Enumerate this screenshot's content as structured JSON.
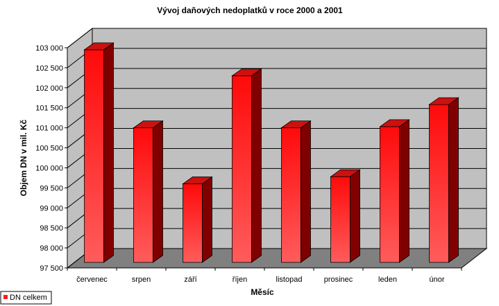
{
  "chart_data": {
    "type": "bar",
    "style": "3d-column",
    "title": "Vývoj daňových nedoplatků v roce 2000 a 2001",
    "xlabel": "Měsíc",
    "ylabel": "Objem DN v mil. Kč",
    "categories": [
      "červenec",
      "srpen",
      "září",
      "říjen",
      "listopad",
      "prosinec",
      "leden",
      "únor"
    ],
    "series": [
      {
        "name": "DN celkem",
        "values": [
          102950,
          101000,
          99600,
          102300,
          101000,
          99780,
          101030,
          101580
        ]
      }
    ],
    "ylim": [
      97500,
      103000
    ],
    "yticks": [
      "97 500",
      "98 000",
      "98 500",
      "99 000",
      "99 500",
      "100 000",
      "100 500",
      "101 000",
      "101 500",
      "102 000",
      "102 500",
      "103 000"
    ],
    "grid": true,
    "legend_position": "bottom-left",
    "colors": {
      "bar_front": "#ff1a1a",
      "bar_front_light": "#ff5a5a",
      "bar_top": "#cc1111",
      "bar_side": "#800000",
      "wall": "#c0c0c0",
      "floor": "#808080",
      "grid": "#000000"
    }
  }
}
